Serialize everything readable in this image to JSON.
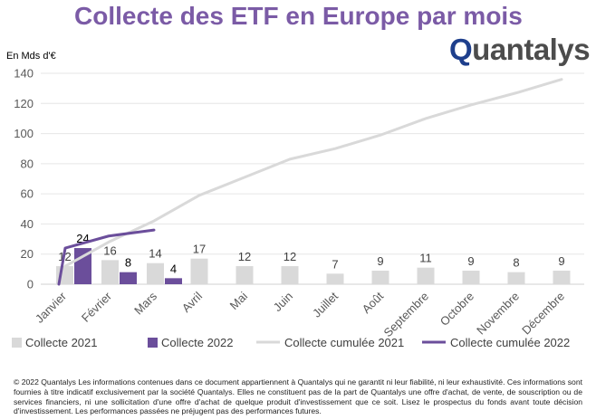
{
  "header": {
    "title": "Collecte des ETF en Europe par mois",
    "logo_text": "Quantalys"
  },
  "footer": {
    "disclaimer": "© 2022 Quantalys Les informations contenues dans ce document appartiennent à Quantalys qui ne garantit ni leur fiabilité, ni leur exhaustivité. Ces informations sont fournies à titre indicatif exclusivement par la société Quantalys. Elles ne constituent pas de la part de Quantalys une offre d'achat, de vente, de souscription ou de services financiers, ni une sollicitation d'une offre d'achat de quelque produit d'investissement que ce soit. Lisez le prospectus du fonds avant toute décision d'investissement. Les performances passées ne préjugent pas des performances futures."
  },
  "colors": {
    "title": "#7B5BA6",
    "bar_2021": "#D9D9D9",
    "bar_2022": "#6B4E9B",
    "line_2021": "#D9D9D9",
    "line_2022": "#6B4E9B",
    "grid": "#E6E6E6",
    "logo_accent": "#1E3F8C",
    "logo_text": "#4C4C4C"
  },
  "chart_data": {
    "type": "bar",
    "title": "Collecte des ETF en Europe par mois",
    "ylabel": "En Mds d'€",
    "ylim": [
      0,
      140
    ],
    "yticks": [
      0,
      20,
      40,
      60,
      80,
      100,
      120,
      140
    ],
    "grid": "y",
    "legend_position": "bottom",
    "categories": [
      "Janvier",
      "Février",
      "Mars",
      "Avril",
      "Mai",
      "Juin",
      "Juillet",
      "Août",
      "Septembre",
      "Octobre",
      "Novembre",
      "Décembre"
    ],
    "series": [
      {
        "name": "Collecte 2021",
        "type": "bar",
        "values": [
          12,
          16,
          14,
          17,
          12,
          12,
          7,
          9,
          11,
          9,
          8,
          9
        ]
      },
      {
        "name": "Collecte 2022",
        "type": "bar",
        "values": [
          24,
          8,
          4,
          null,
          null,
          null,
          null,
          null,
          null,
          null,
          null,
          null
        ]
      },
      {
        "name": "Collecte cumulée 2021",
        "type": "line",
        "origin": 0,
        "values": [
          12,
          28,
          42,
          59,
          71,
          83,
          90,
          99,
          110,
          119,
          127,
          136
        ]
      },
      {
        "name": "Collecte cumulée 2022",
        "type": "line",
        "origin": 0,
        "values": [
          24,
          32,
          36,
          null,
          null,
          null,
          null,
          null,
          null,
          null,
          null,
          null
        ]
      }
    ]
  }
}
